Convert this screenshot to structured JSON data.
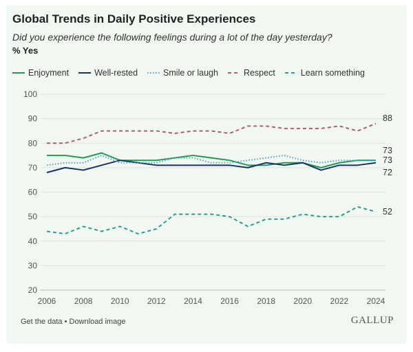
{
  "chart_data": {
    "type": "line",
    "title": "Global Trends in Daily Positive Experiences",
    "subtitle": "Did you experience the following feelings during a lot of the day yesterday?",
    "ylabel": "% Yes",
    "x": [
      2006,
      2007,
      2008,
      2009,
      2010,
      2011,
      2012,
      2013,
      2014,
      2015,
      2016,
      2017,
      2018,
      2019,
      2020,
      2021,
      2022,
      2023,
      2024
    ],
    "xticks": [
      2006,
      2008,
      2010,
      2012,
      2014,
      2016,
      2018,
      2020,
      2022,
      2024
    ],
    "yticks": [
      20,
      30,
      40,
      50,
      60,
      70,
      80,
      90,
      100
    ],
    "ylim": [
      20,
      100
    ],
    "grid": "horizontal",
    "legend": "top",
    "series": [
      {
        "name": "Enjoyment",
        "color": "#1f9a4f",
        "style": "solid",
        "end_label": "73",
        "values": [
          75,
          75,
          74,
          76,
          73,
          73,
          73,
          74,
          75,
          74,
          73,
          71,
          71,
          72,
          72,
          70,
          72,
          73,
          73
        ]
      },
      {
        "name": "Well-rested",
        "color": "#1b2f6e",
        "style": "solid",
        "end_label": "72",
        "values": [
          68,
          70,
          69,
          71,
          73,
          72,
          71,
          71,
          71,
          71,
          71,
          70,
          72,
          71,
          72,
          69,
          71,
          71,
          72
        ]
      },
      {
        "name": "Smile or laugh",
        "color": "#4a9fd0",
        "style": "dotted",
        "end_label": "73",
        "values": [
          71,
          72,
          72,
          75,
          72,
          72,
          72,
          74,
          74,
          72,
          72,
          73,
          74,
          75,
          73,
          72,
          73,
          73,
          73
        ]
      },
      {
        "name": "Respect",
        "color": "#b85a6a",
        "style": "dashed",
        "end_label": "88",
        "values": [
          80,
          80,
          82,
          85,
          85,
          85,
          85,
          84,
          85,
          85,
          84,
          87,
          87,
          86,
          86,
          86,
          87,
          85,
          88
        ]
      },
      {
        "name": "Learn something",
        "color": "#2a9d8f",
        "style": "dashed",
        "end_label": "52",
        "values": [
          44,
          43,
          46,
          44,
          46,
          43,
          45,
          51,
          51,
          51,
          50,
          46,
          49,
          49,
          51,
          50,
          50,
          54,
          52
        ]
      }
    ]
  },
  "footer": {
    "links": "Get the data • Download image",
    "logo": "GALLUP"
  }
}
